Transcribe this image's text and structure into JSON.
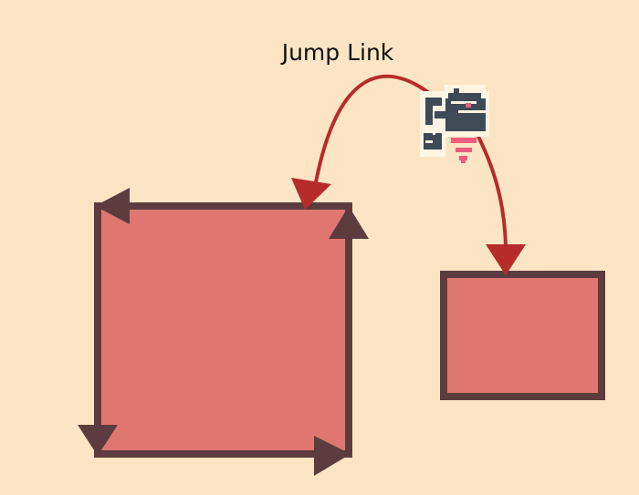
{
  "diagram": {
    "label": "Jump Link"
  },
  "colors": {
    "background": "#fce5c4",
    "platform_fill": "#e07670",
    "platform_stroke": "#5c3c3e",
    "arrow": "#b82b2b",
    "robot_body": "#3e4a56",
    "robot_outline": "#fdf4e3",
    "robot_accent": "#ef5b7a"
  },
  "icons": {
    "robot": "flying-robot-icon"
  }
}
